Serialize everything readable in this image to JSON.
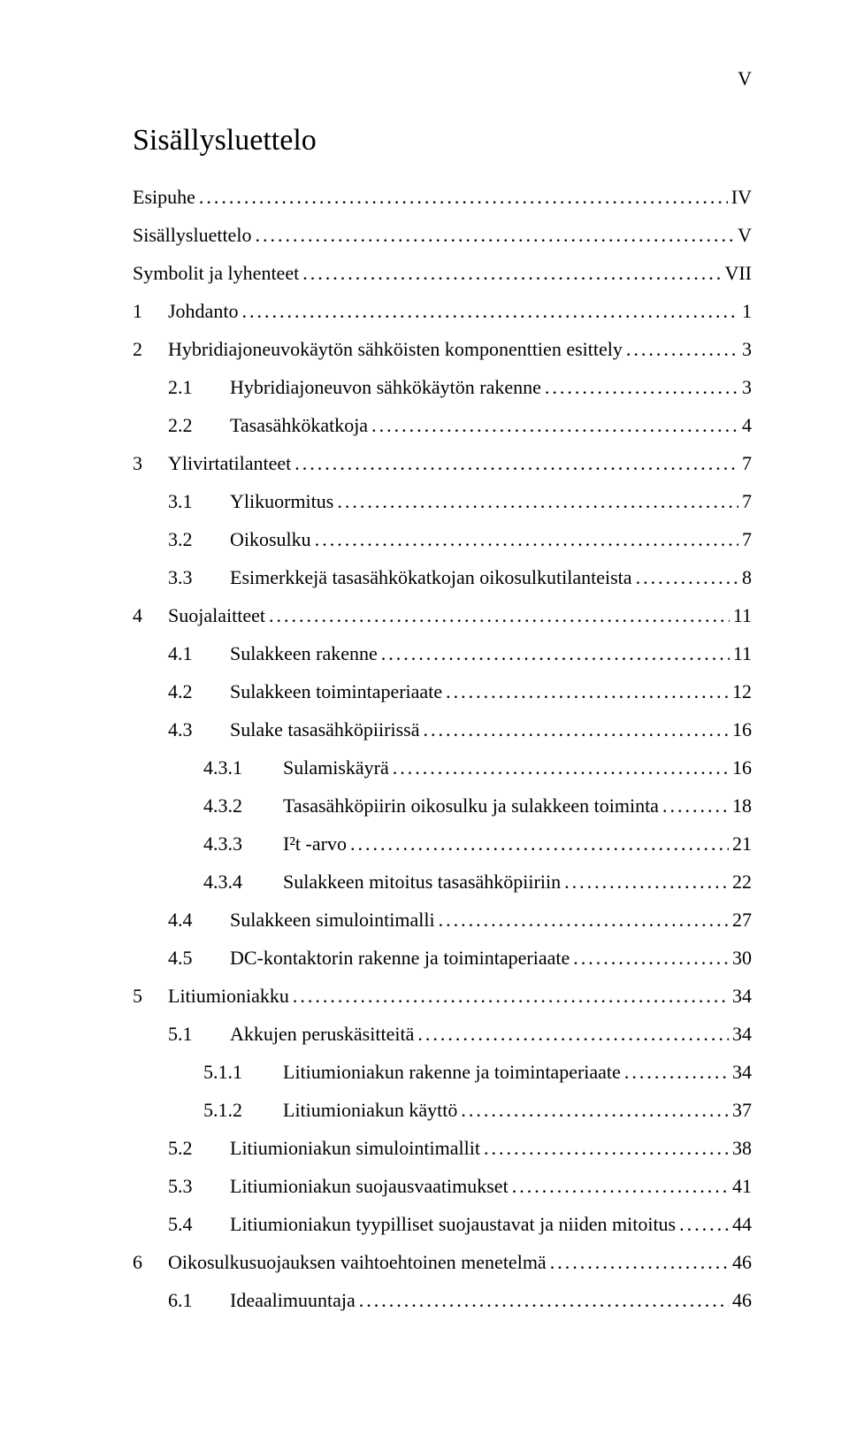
{
  "page_number": "V",
  "title": "Sisällysluettelo",
  "entries": [
    {
      "level": 0,
      "num": "",
      "label": "Esipuhe",
      "page": "IV"
    },
    {
      "level": 0,
      "num": "",
      "label": "Sisällysluettelo",
      "page": "V"
    },
    {
      "level": 0,
      "num": "",
      "label": "Symbolit ja lyhenteet",
      "page": "VII"
    },
    {
      "level": 1,
      "num": "1",
      "label": "Johdanto",
      "page": "1"
    },
    {
      "level": 1,
      "num": "2",
      "label": "Hybridiajoneuvokäytön sähköisten komponenttien esittely",
      "page": "3"
    },
    {
      "level": 2,
      "num": "2.1",
      "label": "Hybridiajoneuvon sähkökäytön rakenne",
      "page": "3"
    },
    {
      "level": 2,
      "num": "2.2",
      "label": "Tasasähkökatkoja",
      "page": "4"
    },
    {
      "level": 1,
      "num": "3",
      "label": "Ylivirtatilanteet",
      "page": "7"
    },
    {
      "level": 2,
      "num": "3.1",
      "label": "Ylikuormitus",
      "page": "7"
    },
    {
      "level": 2,
      "num": "3.2",
      "label": "Oikosulku",
      "page": "7"
    },
    {
      "level": 2,
      "num": "3.3",
      "label": "Esimerkkejä tasasähkökatkojan oikosulkutilanteista",
      "page": "8"
    },
    {
      "level": 1,
      "num": "4",
      "label": "Suojalaitteet",
      "page": "11"
    },
    {
      "level": 2,
      "num": "4.1",
      "label": "Sulakkeen rakenne",
      "page": "11"
    },
    {
      "level": 2,
      "num": "4.2",
      "label": "Sulakkeen toimintaperiaate",
      "page": "12"
    },
    {
      "level": 2,
      "num": "4.3",
      "label": "Sulake tasasähköpiirissä",
      "page": "16"
    },
    {
      "level": 3,
      "num": "4.3.1",
      "label": "Sulamiskäyrä",
      "page": "16"
    },
    {
      "level": 3,
      "num": "4.3.2",
      "label": "Tasasähköpiirin oikosulku ja sulakkeen toiminta",
      "page": "18"
    },
    {
      "level": 3,
      "num": "4.3.3",
      "label": "I²t -arvo",
      "page": "21"
    },
    {
      "level": 3,
      "num": "4.3.4",
      "label": "Sulakkeen mitoitus tasasähköpiiriin",
      "page": "22"
    },
    {
      "level": 2,
      "num": "4.4",
      "label": "Sulakkeen simulointimalli",
      "page": "27"
    },
    {
      "level": 2,
      "num": "4.5",
      "label": "DC-kontaktorin rakenne ja toimintaperiaate",
      "page": "30"
    },
    {
      "level": 1,
      "num": "5",
      "label": "Litiumioniakku",
      "page": "34"
    },
    {
      "level": 2,
      "num": "5.1",
      "label": "Akkujen peruskäsitteitä",
      "page": "34"
    },
    {
      "level": 3,
      "num": "5.1.1",
      "label": "Litiumioniakun rakenne ja toimintaperiaate",
      "page": "34"
    },
    {
      "level": 3,
      "num": "5.1.2",
      "label": "Litiumioniakun käyttö",
      "page": "37"
    },
    {
      "level": 2,
      "num": "5.2",
      "label": "Litiumioniakun simulointimallit",
      "page": "38"
    },
    {
      "level": 2,
      "num": "5.3",
      "label": "Litiumioniakun suojausvaatimukset",
      "page": "41"
    },
    {
      "level": 2,
      "num": "5.4",
      "label": "Litiumioniakun tyypilliset suojaustavat ja niiden mitoitus",
      "page": "44"
    },
    {
      "level": 1,
      "num": "6",
      "label": "Oikosulkusuojauksen vaihtoehtoinen menetelmä",
      "page": "46"
    },
    {
      "level": 2,
      "num": "6.1",
      "label": "Ideaalimuuntaja",
      "page": "46"
    }
  ]
}
